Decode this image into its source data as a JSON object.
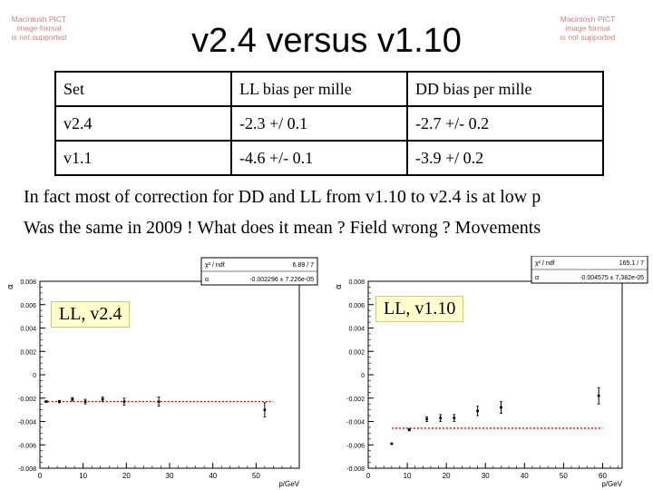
{
  "title": "v2.4 versus v1.10",
  "placeholder_image": {
    "lines": [
      "Macintosh PICT",
      "image format",
      "is not supported"
    ]
  },
  "table": {
    "headers": [
      "Set",
      "LL bias per mille",
      "DD bias per mille"
    ],
    "rows": [
      [
        "v2.4",
        "-2.3 +/ 0.1",
        "-2.7 +/- 0.2"
      ],
      [
        "v1.1",
        "-4.6 +/- 0.1",
        "-3.9 +/ 0.2"
      ]
    ]
  },
  "text_lines": [
    "In fact most of correction for DD and LL from v1.10 to v2.4 is at low p",
    "Was the same in 2009 ! What does it mean ? Field wrong ? Movements"
  ],
  "colors": {
    "fit_line": "#cc0000",
    "stats_box": "#ffffff",
    "label_box": "#ffffcc"
  },
  "chart_data": [
    {
      "type": "scatter",
      "label": "LL, v2.4",
      "xlabel": "p/GeV",
      "ylabel": "α",
      "xlim": [
        0,
        60
      ],
      "ylim": [
        -0.008,
        0.008
      ],
      "xticks": [
        0,
        10,
        20,
        30,
        40,
        50
      ],
      "yticks": [
        -0.008,
        -0.006,
        -0.004,
        -0.002,
        0,
        0.002,
        0.004,
        0.006,
        0.008
      ],
      "stats": {
        "chi2_label": "χ² / ndf",
        "chi2_value": "6.89 / 7",
        "param_label": "α",
        "param_value": "-0.002296 ± 7.226e-05"
      },
      "fit": {
        "value": -0.002296,
        "x_range": [
          1,
          54
        ]
      },
      "points": [
        {
          "x": 1.5,
          "y": -0.0023,
          "err": 8e-05
        },
        {
          "x": 4.5,
          "y": -0.0023,
          "err": 0.0001
        },
        {
          "x": 7.5,
          "y": -0.0021,
          "err": 0.00015
        },
        {
          "x": 10.5,
          "y": -0.0023,
          "err": 0.0002
        },
        {
          "x": 14.5,
          "y": -0.0021,
          "err": 0.0002
        },
        {
          "x": 19.5,
          "y": -0.0023,
          "err": 0.0003
        },
        {
          "x": 27.5,
          "y": -0.0023,
          "err": 0.0004
        },
        {
          "x": 52,
          "y": -0.003,
          "err": 0.0006
        }
      ]
    },
    {
      "type": "scatter",
      "label": "LL, v1.10",
      "xlabel": "p/GeV",
      "ylabel": "α",
      "xlim": [
        0,
        65
      ],
      "ylim": [
        -0.008,
        0.008
      ],
      "xticks": [
        0,
        10,
        20,
        30,
        40,
        50,
        60
      ],
      "yticks": [
        -0.008,
        -0.006,
        -0.004,
        -0.002,
        0,
        0.002,
        0.004,
        0.006,
        0.008
      ],
      "stats": {
        "chi2_label": "χ² / ndf",
        "chi2_value": "165.1 / 7",
        "param_label": "α",
        "param_value": "-0.004575 ± 7.382e-05"
      },
      "fit": {
        "value": -0.004575,
        "x_range": [
          6,
          60
        ]
      },
      "points": [
        {
          "x": 6,
          "y": -0.0059,
          "err": 5e-05
        },
        {
          "x": 10.5,
          "y": -0.0047,
          "err": 0.0001
        },
        {
          "x": 15,
          "y": -0.0038,
          "err": 0.0002
        },
        {
          "x": 18.5,
          "y": -0.0037,
          "err": 0.0003
        },
        {
          "x": 22,
          "y": -0.0037,
          "err": 0.0003
        },
        {
          "x": 28,
          "y": -0.0031,
          "err": 0.0004
        },
        {
          "x": 34,
          "y": -0.0028,
          "err": 0.0005
        },
        {
          "x": 59,
          "y": -0.0018,
          "err": 0.0007
        }
      ]
    }
  ]
}
